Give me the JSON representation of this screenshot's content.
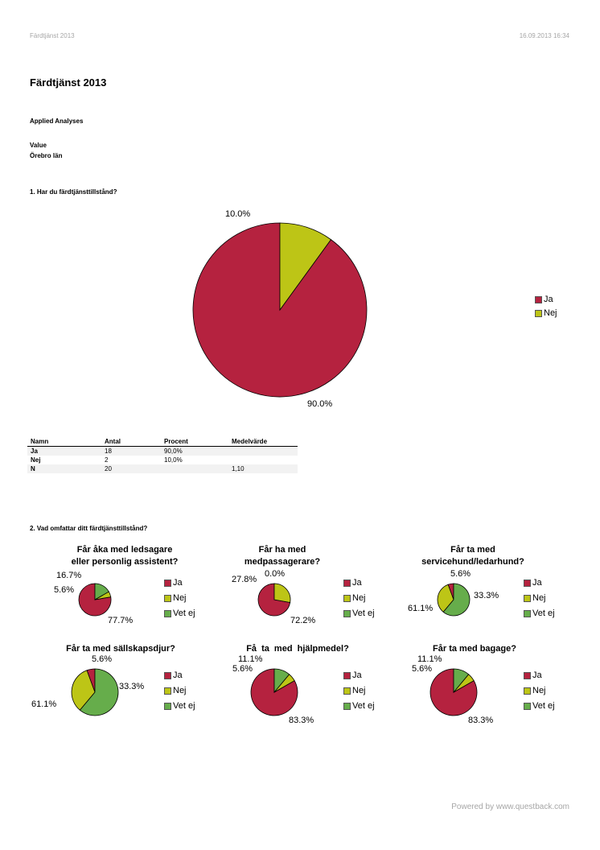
{
  "header": {
    "left": "Färdtjänst 2013",
    "right": "16.09.2013 16:34"
  },
  "title": "Färdtjänst 2013",
  "subtitle": "Applied Analyses",
  "meta": {
    "line1": "Value",
    "line2": "Örebro län"
  },
  "colors": {
    "ja": "#b5223f",
    "nej": "#bdc516",
    "vetej": "#66ad4b"
  },
  "q1": {
    "question": "1. Har du färdtjänsttillstånd?",
    "legend": [
      "Ja",
      "Nej"
    ],
    "labels": [
      "90.0%",
      "10.0%"
    ],
    "table": {
      "headers": [
        "Namn",
        "Antal",
        "Procent",
        "Medelvärde"
      ],
      "rows": [
        [
          "Ja",
          "18",
          "90,0%",
          ""
        ],
        [
          "Nej",
          "2",
          "10,0%",
          ""
        ],
        [
          "N",
          "20",
          "",
          "1,10"
        ]
      ]
    }
  },
  "q2": {
    "question": "2. Vad omfattar ditt färdtjänsttillstånd?",
    "legend": [
      "Ja",
      "Nej",
      "Vet ej"
    ],
    "charts": [
      {
        "title1": "Får åka med ledsagare",
        "title2": "eller personlig assistent?",
        "labels": [
          "77.7%",
          "5.6%",
          "16.7%"
        ]
      },
      {
        "title1": "Får ha med",
        "title2": "medpassagerare?",
        "labels": [
          "72.2%",
          "27.8%",
          "0.0%"
        ]
      },
      {
        "title1": "Får ta med",
        "title2": "servicehund/ledarhund?",
        "labels": [
          "5.6%",
          "33.3%",
          "61.1%"
        ]
      },
      {
        "title1": "Får ta med sällskapsdjur?",
        "title2": "",
        "labels": [
          "5.6%",
          "33.3%",
          "61.1%"
        ]
      },
      {
        "title1": "Få ta med hjälpmedel?",
        "title2": "",
        "labels": [
          "83.3%",
          "5.6%",
          "11.1%"
        ]
      },
      {
        "title1": "Får ta med bagage?",
        "title2": "",
        "labels": [
          "83.3%",
          "5.6%",
          "11.1%"
        ]
      }
    ]
  },
  "chart_data": [
    {
      "type": "pie",
      "title": "1. Har du färdtjänsttillstånd?",
      "categories": [
        "Ja",
        "Nej"
      ],
      "values": [
        90.0,
        10.0
      ]
    },
    {
      "type": "pie",
      "title": "Får åka med ledsagare eller personlig assistent?",
      "categories": [
        "Ja",
        "Nej",
        "Vet ej"
      ],
      "values": [
        77.7,
        5.6,
        16.7
      ]
    },
    {
      "type": "pie",
      "title": "Får ha med medpassagerare?",
      "categories": [
        "Ja",
        "Nej",
        "Vet ej"
      ],
      "values": [
        72.2,
        27.8,
        0.0
      ]
    },
    {
      "type": "pie",
      "title": "Får ta med servicehund/ledarhund?",
      "categories": [
        "Ja",
        "Nej",
        "Vet ej"
      ],
      "values": [
        5.6,
        33.3,
        61.1
      ]
    },
    {
      "type": "pie",
      "title": "Får ta med sällskapsdjur?",
      "categories": [
        "Ja",
        "Nej",
        "Vet ej"
      ],
      "values": [
        5.6,
        33.3,
        61.1
      ]
    },
    {
      "type": "pie",
      "title": "Få ta med hjälpmedel?",
      "categories": [
        "Ja",
        "Nej",
        "Vet ej"
      ],
      "values": [
        83.3,
        5.6,
        11.1
      ]
    },
    {
      "type": "pie",
      "title": "Får ta med bagage?",
      "categories": [
        "Ja",
        "Nej",
        "Vet ej"
      ],
      "values": [
        83.3,
        5.6,
        11.1
      ]
    }
  ],
  "footer": "Powered by www.questback.com"
}
